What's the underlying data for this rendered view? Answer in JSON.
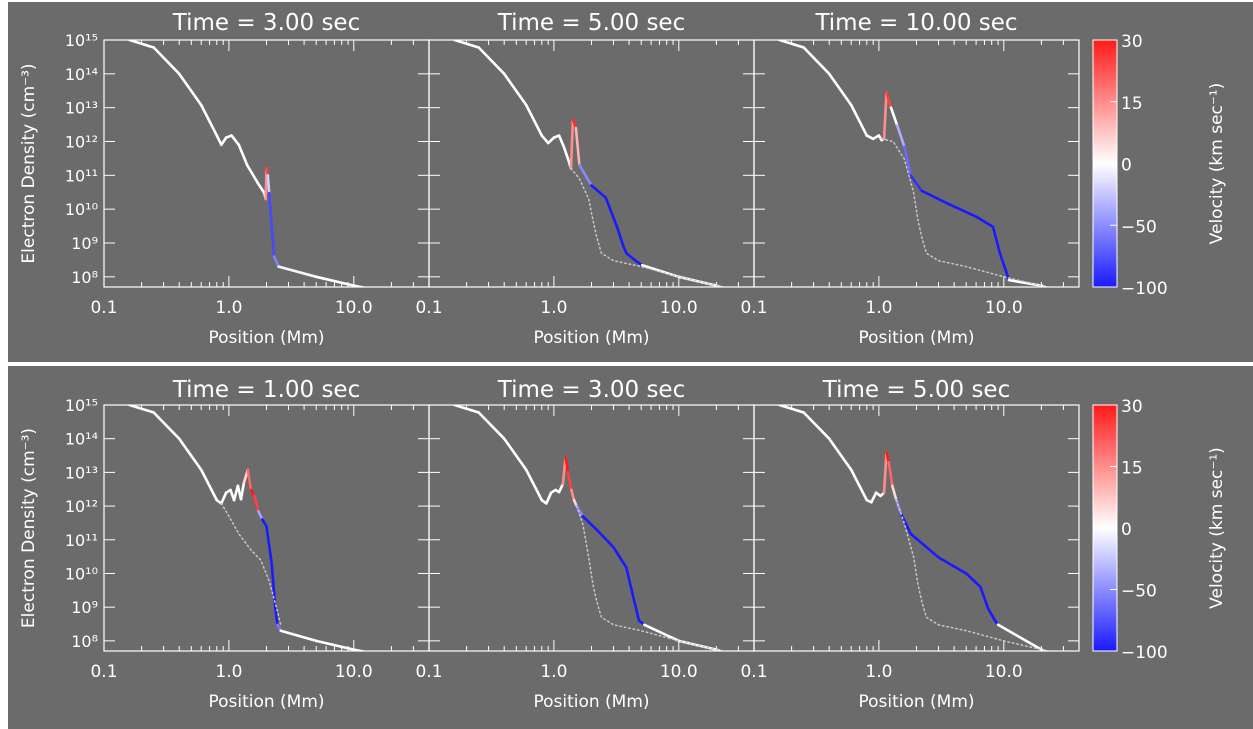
{
  "figure": {
    "background": "#6b6b6b",
    "separator_color": "#ffffff"
  },
  "colors": {
    "static": "#ffffff",
    "prior_profile": "#c8c8c8",
    "positive_velocity": "#ff1a1a",
    "negative_velocity": "#1a1aff",
    "zero_velocity": "#ffffff"
  },
  "colorbar": {
    "label": "Velocity (km sec⁻¹)",
    "ticks": [
      "30",
      "15",
      "0",
      "−50",
      "−100"
    ],
    "tick_values": [
      30,
      15,
      0,
      -50,
      -100
    ],
    "range": [
      -100,
      30
    ]
  },
  "chart_data": [
    {
      "type": "line",
      "row": 1,
      "title": "Time = 3.00 sec",
      "xlabel": "Position (Mm)",
      "ylabel": "Electron Density (cm⁻³)",
      "xscale": "log",
      "yscale": "log",
      "xlim": [
        0.1,
        40
      ],
      "ylim": [
        50000000.0,
        1000000000000000.0
      ],
      "xticks": [
        "0.1",
        "1.0",
        "10.0"
      ],
      "yticks": [
        "10¹⁵",
        "10¹⁴",
        "10¹³",
        "10¹²",
        "10¹¹",
        "10¹⁰",
        "10⁹",
        "10⁸"
      ],
      "series": [
        {
          "x": [
            0.16,
            0.25,
            0.4,
            0.6,
            0.8,
            0.87,
            0.95,
            1.05,
            1.2,
            1.4,
            1.7,
            1.92,
            1.97,
            2.0,
            2.05,
            2.1,
            2.3,
            2.5,
            5,
            10,
            20,
            28,
            40
          ],
          "y": [
            1000000000000000.0,
            600000000000000.0,
            100000000000000.0,
            12000000000000.0,
            1500000000000.0,
            800000000000.0,
            1300000000000.0,
            1500000000000.0,
            800000000000.0,
            200000000000.0,
            60000000000.0,
            30000000000.0,
            20000000000.0,
            160000000000.0,
            100000000000.0,
            30000000000.0,
            400000000.0,
            200000000.0,
            100000000.0,
            55000000.0,
            33000000.0,
            27000000.0,
            32000000.0
          ],
          "v": [
            0,
            0,
            0,
            0,
            0,
            0,
            0,
            0,
            0,
            0,
            0,
            0,
            0,
            30,
            20,
            -60,
            -100,
            -10,
            0,
            0,
            0,
            0,
            0
          ]
        }
      ]
    },
    {
      "type": "line",
      "row": 1,
      "title": "Time = 5.00 sec",
      "xlabel": "Position (Mm)",
      "xscale": "log",
      "yscale": "log",
      "xlim": [
        0.1,
        40
      ],
      "ylim": [
        50000000.0,
        1000000000000000.0
      ],
      "xticks": [
        "0.1",
        "1.0",
        "10.0"
      ],
      "series": [
        {
          "x": [
            0.16,
            0.25,
            0.4,
            0.6,
            0.8,
            0.9,
            1.0,
            1.1,
            1.2,
            1.3,
            1.37,
            1.42,
            1.5,
            1.6,
            2.0,
            2.6,
            3.2,
            3.6,
            3.8,
            4.5,
            5.1
          ],
          "y": [
            1000000000000000.0,
            600000000000000.0,
            100000000000000.0,
            12000000000000.0,
            1500000000000.0,
            900000000000.0,
            1300000000000.0,
            1500000000000.0,
            700000000000.0,
            300000000000.0,
            160000000000.0,
            4500000000000.0,
            2500000000000.0,
            200000000000.0,
            50000000000.0,
            22000000000.0,
            3000000000.0,
            800000000.0,
            500000000.0,
            300000000.0,
            220000000.0
          ],
          "v": [
            0,
            0,
            0,
            0,
            0,
            0,
            0,
            0,
            0,
            0,
            0,
            30,
            25,
            -5,
            -100,
            -100,
            -100,
            -100,
            -100,
            -100,
            -100
          ]
        },
        {
          "x": [
            5.1,
            10,
            20,
            28,
            40
          ],
          "y": [
            220000000.0,
            100000000.0,
            55000000.0,
            33000000.0,
            33000000.0
          ],
          "v": [
            0,
            0,
            0,
            0,
            0
          ]
        },
        {
          "name": "prior",
          "dotted": true,
          "x": [
            1.37,
            1.6,
            1.9,
            2.05,
            2.2,
            2.4,
            3,
            5,
            10,
            20,
            40
          ],
          "y": [
            160000000000.0,
            80000000000.0,
            20000000000.0,
            5000000000.0,
            1500000000.0,
            500000000.0,
            300000000.0,
            200000000.0,
            100000000.0,
            55000000.0,
            33000000.0
          ]
        }
      ]
    },
    {
      "type": "line",
      "row": 1,
      "title": "Time = 10.00 sec",
      "xlabel": "Position (Mm)",
      "xscale": "log",
      "yscale": "log",
      "xlim": [
        0.1,
        40
      ],
      "ylim": [
        50000000.0,
        1000000000000000.0
      ],
      "xticks": [
        "0.1",
        "1.0",
        "10.0"
      ],
      "series": [
        {
          "x": [
            0.16,
            0.25,
            0.4,
            0.6,
            0.8,
            0.9,
            1.0,
            1.05,
            1.1,
            1.15,
            1.25,
            1.4,
            1.6,
            1.8,
            2.2,
            3.5,
            6,
            8.2,
            9.3,
            10.4,
            11
          ],
          "y": [
            1000000000000000.0,
            600000000000000.0,
            100000000000000.0,
            12000000000000.0,
            1500000000000.0,
            1200000000000.0,
            1500000000000.0,
            1100000000000.0,
            1200000000000.0,
            28000000000000.0,
            10000000000000.0,
            3000000000000.0,
            700000000000.0,
            100000000000.0,
            35000000000.0,
            15000000000.0,
            6000000000.0,
            3000000000.0,
            500000000.0,
            150000000.0,
            80000000.0
          ],
          "v": [
            0,
            0,
            0,
            0,
            0,
            0,
            0,
            0,
            0,
            30,
            20,
            -20,
            -50,
            -80,
            -100,
            -100,
            -100,
            -100,
            -100,
            -100,
            -100
          ]
        },
        {
          "x": [
            11,
            20,
            28,
            40
          ],
          "y": [
            80000000.0,
            55000000.0,
            33000000.0,
            33000000.0
          ],
          "v": [
            0,
            0,
            0,
            0
          ]
        },
        {
          "name": "prior",
          "dotted": true,
          "x": [
            1.05,
            1.3,
            1.6,
            1.9,
            2.05,
            2.2,
            2.4,
            3,
            5,
            10,
            20,
            40
          ],
          "y": [
            1200000000000.0,
            1000000000000.0,
            300000000000.0,
            30000000000.0,
            5000000000.0,
            1500000000.0,
            500000000.0,
            300000000.0,
            200000000.0,
            100000000.0,
            55000000.0,
            33000000.0
          ]
        }
      ]
    },
    {
      "type": "line",
      "row": 2,
      "title": "Time = 1.00 sec",
      "xlabel": "Position (Mm)",
      "ylabel": "Electron Density (cm⁻³)",
      "xscale": "log",
      "yscale": "log",
      "xlim": [
        0.1,
        40
      ],
      "ylim": [
        50000000.0,
        1000000000000000.0
      ],
      "xticks": [
        "0.1",
        "1.0",
        "10.0"
      ],
      "yticks": [
        "10¹⁵",
        "10¹⁴",
        "10¹³",
        "10¹²",
        "10¹¹",
        "10¹⁰",
        "10⁹",
        "10⁸"
      ],
      "series": [
        {
          "x": [
            0.16,
            0.25,
            0.4,
            0.6,
            0.8,
            0.87,
            0.95,
            1.03,
            1.1,
            1.18,
            1.25,
            1.32,
            1.42,
            1.5,
            1.6,
            1.72,
            1.85,
            2.0,
            2.2,
            2.35,
            2.45,
            2.6
          ],
          "y": [
            1000000000000000.0,
            600000000000000.0,
            100000000000000.0,
            12000000000000.0,
            1500000000000.0,
            1200000000000.0,
            2500000000000.0,
            3000000000000.0,
            1500000000000.0,
            4000000000000.0,
            1600000000000.0,
            5000000000000.0,
            12000000000000.0,
            3000000000000.0,
            2000000000000.0,
            700000000000.0,
            400000000000.0,
            250000000000.0,
            20000000000.0,
            1000000000.0,
            300000000.0,
            200000000.0
          ],
          "v": [
            0,
            0,
            0,
            0,
            0,
            0,
            0,
            0,
            0,
            0,
            0,
            0,
            10,
            30,
            30,
            20,
            -100,
            -100,
            -100,
            -100,
            -100,
            -20
          ]
        },
        {
          "x": [
            2.6,
            5,
            10,
            20,
            28,
            40
          ],
          "y": [
            200000000.0,
            100000000.0,
            55000000.0,
            33000000.0,
            27000000.0,
            32000000.0
          ],
          "v": [
            0,
            0,
            0,
            0,
            0,
            0
          ]
        },
        {
          "name": "prior",
          "dotted": true,
          "x": [
            0.87,
            1.0,
            1.2,
            1.5,
            1.8,
            2.1,
            2.4,
            2.6
          ],
          "y": [
            1200000000000.0,
            500000000000.0,
            150000000000.0,
            50000000000.0,
            25000000000.0,
            6000000000.0,
            1000000000.0,
            300000000.0
          ]
        }
      ]
    },
    {
      "type": "line",
      "row": 2,
      "title": "Time = 3.00 sec",
      "xlabel": "Position (Mm)",
      "xscale": "log",
      "yscale": "log",
      "xlim": [
        0.1,
        40
      ],
      "ylim": [
        50000000.0,
        1000000000000000.0
      ],
      "xticks": [
        "0.1",
        "1.0",
        "10.0"
      ],
      "series": [
        {
          "x": [
            0.16,
            0.25,
            0.4,
            0.6,
            0.8,
            0.87,
            0.95,
            1.03,
            1.1,
            1.18,
            1.24,
            1.3,
            1.38,
            1.45,
            1.52,
            1.7,
            2.2,
            3,
            3.8,
            4.4,
            4.8,
            5.3
          ],
          "y": [
            1000000000000000.0,
            600000000000000.0,
            100000000000000.0,
            12000000000000.0,
            1500000000000.0,
            1200000000000.0,
            2500000000000.0,
            3000000000000.0,
            2600000000000.0,
            4500000000000.0,
            28000000000000.0,
            10000000000000.0,
            3000000000000.0,
            1500000000000.0,
            1000000000000.0,
            500000000000.0,
            200000000000.0,
            60000000000.0,
            15000000000.0,
            1500000000.0,
            400000000.0,
            300000000.0
          ],
          "v": [
            0,
            0,
            0,
            0,
            0,
            0,
            0,
            0,
            0,
            0,
            30,
            30,
            20,
            10,
            0,
            -100,
            -100,
            -100,
            -100,
            -100,
            -100,
            -100
          ]
        },
        {
          "x": [
            5.3,
            10,
            20,
            28,
            40
          ],
          "y": [
            300000000.0,
            100000000.0,
            55000000.0,
            33000000.0,
            33000000.0
          ],
          "v": [
            0,
            0,
            0,
            0,
            0
          ]
        },
        {
          "name": "prior",
          "dotted": true,
          "x": [
            1.52,
            1.7,
            1.9,
            2.05,
            2.2,
            2.4,
            3,
            5,
            10,
            20,
            40
          ],
          "y": [
            1000000000000.0,
            300000000000.0,
            30000000000.0,
            5000000000.0,
            1500000000.0,
            500000000.0,
            300000000.0,
            200000000.0,
            100000000.0,
            55000000.0,
            33000000.0
          ]
        }
      ]
    },
    {
      "type": "line",
      "row": 2,
      "title": "Time = 5.00 sec",
      "xlabel": "Position (Mm)",
      "xscale": "log",
      "yscale": "log",
      "xlim": [
        0.1,
        40
      ],
      "ylim": [
        50000000.0,
        1000000000000000.0
      ],
      "xticks": [
        "0.1",
        "1.0",
        "10.0"
      ],
      "series": [
        {
          "x": [
            0.16,
            0.25,
            0.4,
            0.6,
            0.8,
            0.87,
            0.95,
            1.03,
            1.1,
            1.15,
            1.2,
            1.28,
            1.38,
            1.5,
            1.8,
            3,
            5,
            6.5,
            7.5,
            8.5,
            9
          ],
          "y": [
            1000000000000000.0,
            600000000000000.0,
            100000000000000.0,
            12000000000000.0,
            1500000000000.0,
            1300000000000.0,
            2500000000000.0,
            2000000000000.0,
            2500000000000.0,
            40000000000000.0,
            20000000000000.0,
            4000000000000.0,
            1500000000000.0,
            600000000000.0,
            150000000000.0,
            30000000000.0,
            10000000000.0,
            4000000000.0,
            900000000.0,
            400000000.0,
            300000000.0
          ],
          "v": [
            0,
            0,
            0,
            0,
            0,
            0,
            0,
            0,
            0,
            30,
            30,
            10,
            0,
            -100,
            -100,
            -100,
            -100,
            -100,
            -100,
            -100,
            -100
          ]
        },
        {
          "x": [
            9,
            20,
            28,
            40
          ],
          "y": [
            300000000.0,
            55000000.0,
            33000000.0,
            33000000.0
          ],
          "v": [
            0,
            0,
            0,
            0
          ]
        },
        {
          "name": "prior",
          "dotted": true,
          "x": [
            1.38,
            1.6,
            1.9,
            2.05,
            2.2,
            2.4,
            3,
            5,
            10,
            20,
            40
          ],
          "y": [
            1500000000000.0,
            300000000000.0,
            30000000000.0,
            5000000000.0,
            1500000000.0,
            500000000.0,
            300000000.0,
            200000000.0,
            100000000.0,
            55000000.0,
            33000000.0
          ]
        }
      ]
    }
  ]
}
